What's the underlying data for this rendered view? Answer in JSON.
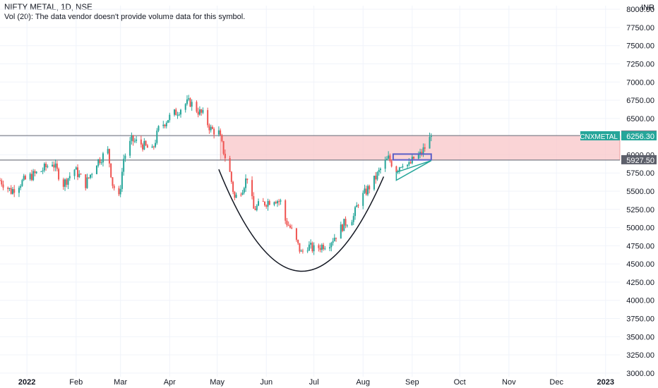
{
  "header": {
    "title": "NIFTY METAL, 1D, NSE",
    "volume_note": "Vol (20): The data vendor doesn't provide volume data for this symbol."
  },
  "chart_data": {
    "type": "candlestick",
    "currency": "INR",
    "ylim": [
      2950,
      8050
    ],
    "y_ticks": [
      3000,
      3250,
      3500,
      3750,
      4000,
      4250,
      4500,
      4750,
      5000,
      5250,
      5500,
      5750,
      6000,
      6250,
      6500,
      6750,
      7000,
      7250,
      7500,
      7750,
      8000
    ],
    "y_tick_labels": [
      "3000.00",
      "3250.00",
      "3500.00",
      "3750.00",
      "4000.00",
      "4250.00",
      "4500.00",
      "4750.00",
      "5000.00",
      "5250.00",
      "5500.00",
      "5750.00",
      "6000.00",
      "6250.00",
      "6500.00",
      "6750.00",
      "7000.00",
      "7250.00",
      "7500.00",
      "7750.00",
      "8000.00"
    ],
    "x_range": [
      "2021-12-15",
      "2023-01-10"
    ],
    "x_ticks": [
      {
        "date": "2022-01-01",
        "label": "2022",
        "bold": true
      },
      {
        "date": "2022-02-01",
        "label": "Feb",
        "bold": false
      },
      {
        "date": "2022-03-01",
        "label": "Mar",
        "bold": false
      },
      {
        "date": "2022-04-01",
        "label": "Apr",
        "bold": false
      },
      {
        "date": "2022-05-01",
        "label": "May",
        "bold": false
      },
      {
        "date": "2022-06-01",
        "label": "Jun",
        "bold": false
      },
      {
        "date": "2022-07-01",
        "label": "Jul",
        "bold": false
      },
      {
        "date": "2022-08-01",
        "label": "Aug",
        "bold": false
      },
      {
        "date": "2022-09-01",
        "label": "Sep",
        "bold": false
      },
      {
        "date": "2022-10-01",
        "label": "Oct",
        "bold": false
      },
      {
        "date": "2022-11-01",
        "label": "Nov",
        "bold": false
      },
      {
        "date": "2022-12-01",
        "label": "Dec",
        "bold": false
      },
      {
        "date": "2023-01-01",
        "label": "2023",
        "bold": true
      }
    ],
    "closes": [
      {
        "date": "2021-12-15",
        "close": 5650
      },
      {
        "date": "2021-12-22",
        "close": 5500
      },
      {
        "date": "2021-12-27",
        "close": 5600
      },
      {
        "date": "2022-01-03",
        "close": 5700
      },
      {
        "date": "2022-01-10",
        "close": 5780
      },
      {
        "date": "2022-01-17",
        "close": 5900
      },
      {
        "date": "2022-01-24",
        "close": 5600
      },
      {
        "date": "2022-01-31",
        "close": 5800
      },
      {
        "date": "2022-02-07",
        "close": 5600
      },
      {
        "date": "2022-02-14",
        "close": 5900
      },
      {
        "date": "2022-02-21",
        "close": 6050
      },
      {
        "date": "2022-02-24",
        "close": 5600
      },
      {
        "date": "2022-02-28",
        "close": 5400
      },
      {
        "date": "2022-03-03",
        "close": 5950
      },
      {
        "date": "2022-03-08",
        "close": 6200
      },
      {
        "date": "2022-03-14",
        "close": 6150
      },
      {
        "date": "2022-03-21",
        "close": 6050
      },
      {
        "date": "2022-03-25",
        "close": 6350
      },
      {
        "date": "2022-03-31",
        "close": 6500
      },
      {
        "date": "2022-04-06",
        "close": 6600
      },
      {
        "date": "2022-04-11",
        "close": 6700
      },
      {
        "date": "2022-04-14",
        "close": 6720
      },
      {
        "date": "2022-04-19",
        "close": 6600
      },
      {
        "date": "2022-04-22",
        "close": 6550
      },
      {
        "date": "2022-04-27",
        "close": 6350
      },
      {
        "date": "2022-05-02",
        "close": 6300
      },
      {
        "date": "2022-05-05",
        "close": 6050
      },
      {
        "date": "2022-05-09",
        "close": 5750
      },
      {
        "date": "2022-05-12",
        "close": 5400
      },
      {
        "date": "2022-05-17",
        "close": 5550
      },
      {
        "date": "2022-05-20",
        "close": 5700
      },
      {
        "date": "2022-05-24",
        "close": 5250
      },
      {
        "date": "2022-05-27",
        "close": 5300
      },
      {
        "date": "2022-06-01",
        "close": 5350
      },
      {
        "date": "2022-06-06",
        "close": 5400
      },
      {
        "date": "2022-06-10",
        "close": 5350
      },
      {
        "date": "2022-06-13",
        "close": 5100
      },
      {
        "date": "2022-06-16",
        "close": 5000
      },
      {
        "date": "2022-06-20",
        "close": 4800
      },
      {
        "date": "2022-06-23",
        "close": 4650
      },
      {
        "date": "2022-06-27",
        "close": 4750
      },
      {
        "date": "2022-07-01",
        "close": 4700
      },
      {
        "date": "2022-07-06",
        "close": 4750
      },
      {
        "date": "2022-07-11",
        "close": 4800
      },
      {
        "date": "2022-07-15",
        "close": 4900
      },
      {
        "date": "2022-07-20",
        "close": 5050
      },
      {
        "date": "2022-07-26",
        "close": 5150
      },
      {
        "date": "2022-07-29",
        "close": 5350
      },
      {
        "date": "2022-08-03",
        "close": 5500
      },
      {
        "date": "2022-08-08",
        "close": 5650
      },
      {
        "date": "2022-08-12",
        "close": 5800
      },
      {
        "date": "2022-08-17",
        "close": 5950
      },
      {
        "date": "2022-08-22",
        "close": 5800
      },
      {
        "date": "2022-08-26",
        "close": 5900
      },
      {
        "date": "2022-08-30",
        "close": 5850
      },
      {
        "date": "2022-09-02",
        "close": 5950
      },
      {
        "date": "2022-09-06",
        "close": 6000
      },
      {
        "date": "2022-09-09",
        "close": 6100
      },
      {
        "date": "2022-09-13",
        "close": 6256.3
      }
    ],
    "horizontal_levels": [
      {
        "value": 6264.1,
        "label": "6264.10",
        "style": "dark"
      },
      {
        "value": 5927.5,
        "label": "5927.50",
        "style": "dark"
      }
    ],
    "last_price": {
      "value": 6256.3,
      "label": "6256.30",
      "symbol": "CNXMETAL",
      "color": "#26a69a"
    },
    "colors": {
      "up": "#26a69a",
      "down": "#ef5350",
      "zone": "#f8c5c8",
      "zone_border": "#e57373",
      "rect": "#5b5fc7",
      "triangle": "#26a69a",
      "curve": "#131722"
    },
    "annotations": {
      "zone": {
        "from": "2022-05-03",
        "to": "2023-01-10",
        "low": 5927.5,
        "high": 6264.1
      },
      "cup_curve": [
        [
          "2022-05-02",
          5800
        ],
        [
          "2022-06-22",
          4400
        ],
        [
          "2022-08-14",
          5700
        ]
      ],
      "handle_rect": {
        "from": "2022-08-20",
        "to": "2022-09-13",
        "low": 5930,
        "high": 6010
      },
      "triangle": [
        [
          "2022-08-22",
          5650
        ],
        [
          "2022-09-13",
          5920
        ],
        [
          "2022-08-22",
          5760
        ]
      ]
    }
  }
}
